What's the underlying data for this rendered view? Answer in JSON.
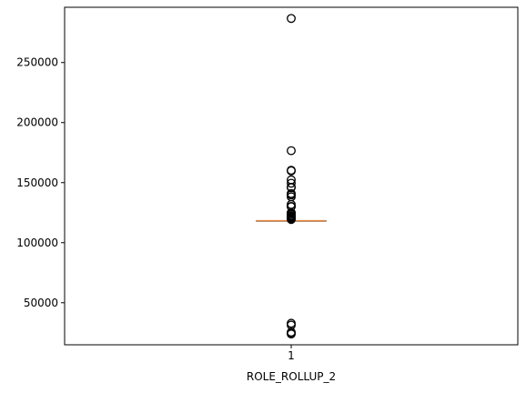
{
  "chart_data": {
    "type": "boxplot",
    "title": "",
    "xlabel": "ROLE_ROLLUP_2",
    "ylabel": "",
    "categories": [
      "1"
    ],
    "ylim": [
      15000,
      296000
    ],
    "yticks": [
      {
        "value": 50000,
        "label": "50000"
      },
      {
        "value": 100000,
        "label": "100000"
      },
      {
        "value": 150000,
        "label": "150000"
      },
      {
        "value": 200000,
        "label": "200000"
      },
      {
        "value": 250000,
        "label": "250000"
      }
    ],
    "grid": false,
    "box": {
      "q1": 118300,
      "median": 118300,
      "q3": 118300,
      "whisker_low": 118300,
      "whisker_high": 118300
    },
    "outliers": [
      286700,
      176600,
      160300,
      159800,
      152300,
      149500,
      146200,
      145800,
      140900,
      139800,
      138200,
      131800,
      130200,
      129900,
      125000,
      124500,
      123500,
      122400,
      121600,
      120800,
      120200,
      119700,
      119300,
      32900,
      31400,
      25500,
      24800,
      24000
    ],
    "colors": {
      "median": "#e8853a",
      "box": "#000000",
      "flier": "#000000",
      "axes": "#000000"
    }
  }
}
